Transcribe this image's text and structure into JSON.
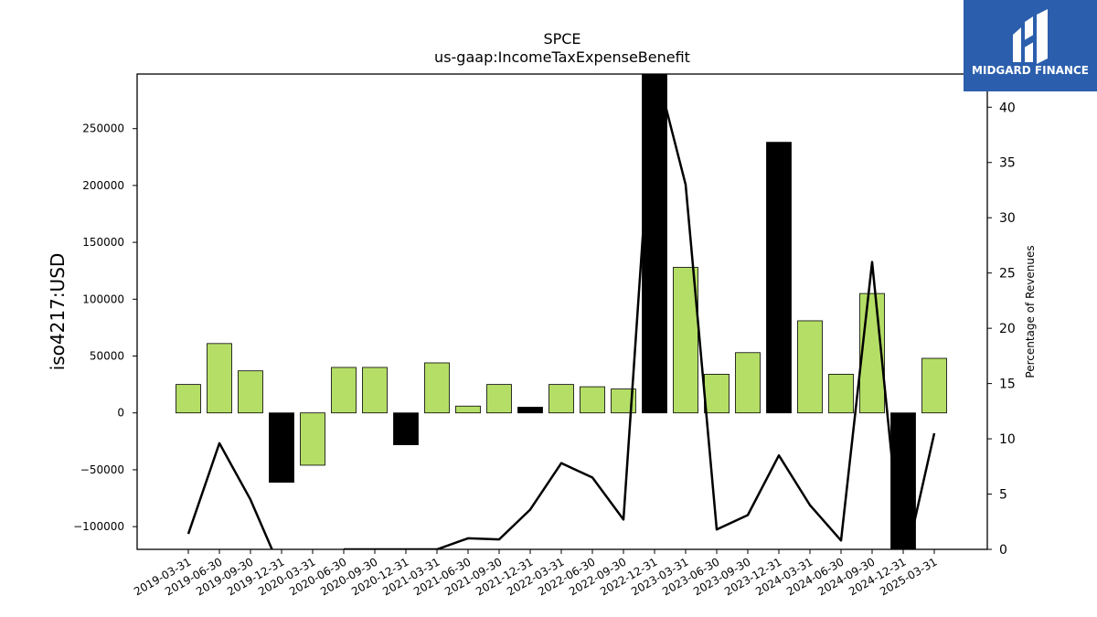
{
  "chart_data": {
    "type": "bar",
    "title": "SPCE",
    "subtitle": "us-gaap:IncomeTaxExpenseBenefit",
    "ylabel": "iso4217:USD",
    "y2label": "Percentage of Revenues",
    "ylim": [
      -120000,
      298000
    ],
    "y2lim": [
      0,
      43
    ],
    "yticks": [
      -100000,
      -50000,
      0,
      50000,
      100000,
      150000,
      200000,
      250000
    ],
    "y2ticks": [
      0,
      5,
      10,
      15,
      20,
      25,
      30,
      35,
      40
    ],
    "categories": [
      "2019-03-31",
      "2019-06-30",
      "2019-09-30",
      "2019-12-31",
      "2020-03-31",
      "2020-06-30",
      "2020-09-30",
      "2020-12-31",
      "2021-03-31",
      "2021-06-30",
      "2021-09-30",
      "2021-12-31",
      "2022-03-31",
      "2022-06-30",
      "2022-09-30",
      "2022-12-31",
      "2023-03-31",
      "2023-06-30",
      "2023-09-30",
      "2023-12-31",
      "2024-03-31",
      "2024-06-30",
      "2024-09-30",
      "2024-12-31",
      "2025-03-31"
    ],
    "series": [
      {
        "values": [
          25000,
          61000,
          37000,
          -61000,
          -46000,
          40000,
          40000,
          -28000,
          44000,
          6000,
          25000,
          5000,
          25000,
          23000,
          21000,
          298000,
          128000,
          34000,
          53000,
          238000,
          81000,
          34000,
          105000,
          -120000,
          48000
        ],
        "colors": [
          "#b5de66",
          "#b5de66",
          "#b5de66",
          "#000000",
          "#b5de66",
          "#b5de66",
          "#b5de66",
          "#000000",
          "#b5de66",
          "#b5de66",
          "#b5de66",
          "#000000",
          "#b5de66",
          "#b5de66",
          "#b5de66",
          "#000000",
          "#b5de66",
          "#b5de66",
          "#b5de66",
          "#000000",
          "#b5de66",
          "#b5de66",
          "#b5de66",
          "#000000",
          "#b5de66"
        ]
      },
      {
        "type": "line",
        "axis": "right",
        "values": [
          1.4,
          9.6,
          4.5,
          -2,
          null,
          0.0,
          0.0,
          0.0,
          0.0,
          1.0,
          0.9,
          3.6,
          7.8,
          6.5,
          2.7,
          44,
          33,
          1.8,
          3.1,
          8.5,
          4.0,
          0.8,
          26.0,
          -2,
          10.5
        ]
      }
    ],
    "bar_color": "#b5de66",
    "negative_color": "#000000",
    "line_color": "#000000",
    "grid": false
  },
  "logo": {
    "text": "MIDGARD FINANCE",
    "bg_color": "#2b5fad"
  }
}
